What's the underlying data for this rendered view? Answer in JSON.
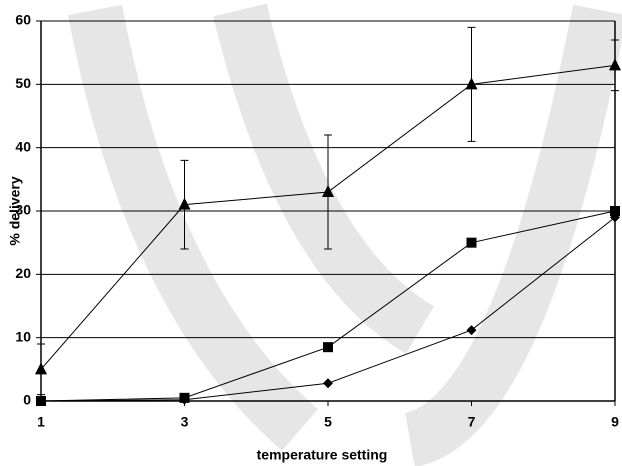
{
  "chart_data": {
    "type": "line",
    "x_label": "temperature setting",
    "y_label": "% delivery",
    "x": [
      1,
      3,
      5,
      7,
      9
    ],
    "series": [
      {
        "color": "#000000",
        "marker": "triangle",
        "values": [
          5,
          31,
          33,
          50,
          53
        ],
        "errors": [
          4,
          7,
          9,
          9,
          4
        ]
      },
      {
        "color": "#000000",
        "marker": "square",
        "values": [
          0,
          0.5,
          8.5,
          25,
          30
        ]
      },
      {
        "color": "#000000",
        "marker": "diamond",
        "values": [
          0,
          0.2,
          2.8,
          11.2,
          29
        ]
      }
    ],
    "xlim": [
      1,
      9
    ],
    "xticks": [
      1,
      3,
      5,
      7,
      9
    ],
    "ylim": [
      0,
      60
    ],
    "yticks": [
      0,
      10,
      20,
      30,
      40,
      50,
      60
    ],
    "grid": true
  }
}
